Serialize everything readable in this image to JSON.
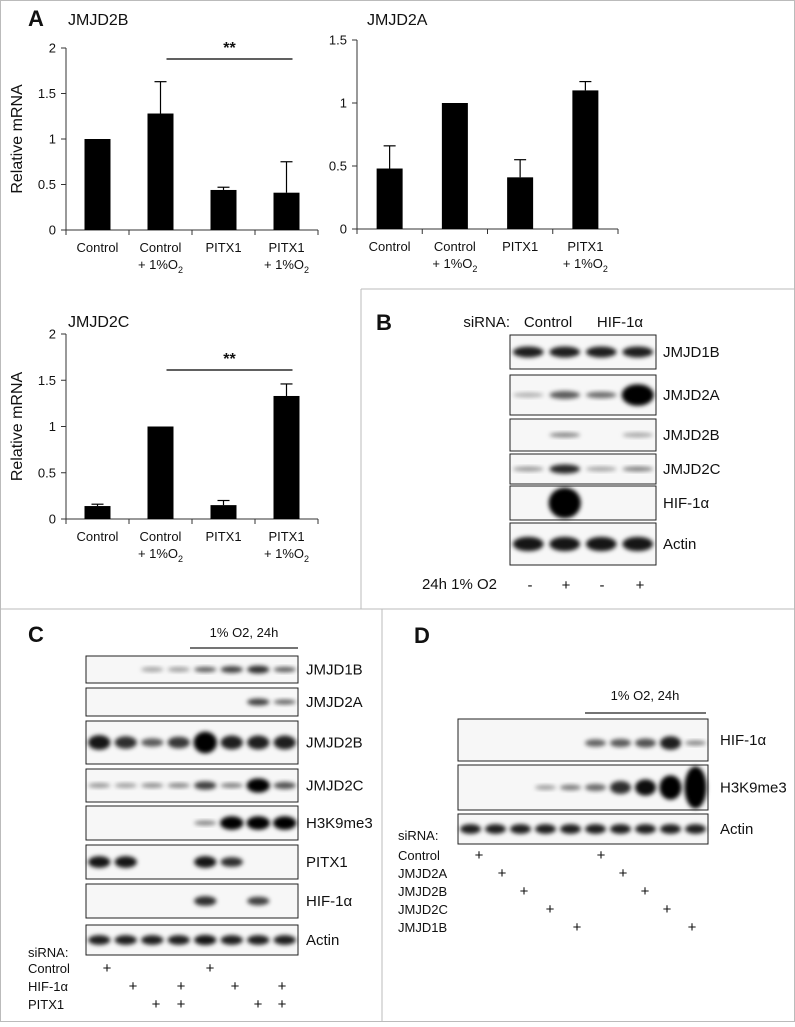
{
  "panel_letters": {
    "a": "A",
    "b": "B",
    "c": "C",
    "d": "D"
  },
  "chart_data": [
    {
      "type": "bar",
      "title": "JMJD2B",
      "ylabel": "Relative mRNA",
      "categories": [
        [
          "Control"
        ],
        [
          "Control",
          "+ 1%O2"
        ],
        [
          "PITX1"
        ],
        [
          "PITX1",
          "+ 1%O2"
        ]
      ],
      "values": [
        1.0,
        1.28,
        0.44,
        0.41
      ],
      "errors": [
        0.0,
        0.35,
        0.03,
        0.34
      ],
      "ylim": [
        0,
        2
      ],
      "yticks": [
        "0",
        "0.5",
        "1",
        "1.5",
        "2"
      ],
      "significance": {
        "label": "**",
        "from": 1,
        "to": 3
      }
    },
    {
      "type": "bar",
      "title": "JMJD2A",
      "ylabel": "",
      "categories": [
        [
          "Control"
        ],
        [
          "Control",
          "+ 1%O2"
        ],
        [
          "PITX1"
        ],
        [
          "PITX1",
          "+ 1%O2"
        ]
      ],
      "values": [
        0.48,
        1.0,
        0.41,
        1.1
      ],
      "errors": [
        0.18,
        0.0,
        0.14,
        0.07
      ],
      "ylim": [
        0,
        1.5
      ],
      "yticks": [
        "0",
        "0.5",
        "1",
        "1.5"
      ]
    },
    {
      "type": "bar",
      "title": "JMJD2C",
      "ylabel": "Relative mRNA",
      "categories": [
        [
          "Control"
        ],
        [
          "Control",
          "+ 1%O2"
        ],
        [
          "PITX1"
        ],
        [
          "PITX1",
          "+ 1%O2"
        ]
      ],
      "values": [
        0.14,
        1.0,
        0.15,
        1.33
      ],
      "errors": [
        0.02,
        0.0,
        0.05,
        0.13
      ],
      "ylim": [
        0,
        2
      ],
      "yticks": [
        "0",
        "0.5",
        "1",
        "1.5",
        "2"
      ],
      "significance": {
        "label": "**",
        "from": 1,
        "to": 3
      }
    }
  ],
  "panel_b": {
    "sirna_label": "siRNA:",
    "groups": [
      "Control",
      "HIF-1α"
    ],
    "bands": [
      "JMJD1B",
      "JMJD2A",
      "JMJD2B",
      "JMJD2C",
      "HIF-1α",
      "Actin"
    ],
    "condition_label": "24h 1% O2",
    "condition_marks": [
      "-",
      "+",
      "-",
      "+"
    ]
  },
  "panel_c": {
    "treatment_label": "1% O2, 24h",
    "bands": [
      "JMJD1B",
      "JMJD2A",
      "JMJD2B",
      "JMJD2C",
      "H3K9me3",
      "PITX1",
      "HIF-1α",
      "Actin"
    ],
    "sirna_label": "siRNA:",
    "rows": [
      {
        "label": "Control",
        "marks": [
          "+",
          "",
          "",
          "",
          "+",
          "",
          "",
          ""
        ]
      },
      {
        "label": "HIF-1α",
        "marks": [
          "",
          "+",
          "",
          "+",
          "",
          "+",
          "",
          "+"
        ]
      },
      {
        "label": "PITX1",
        "marks": [
          "",
          "",
          "+",
          "+",
          "",
          "",
          "+",
          "+"
        ]
      }
    ]
  },
  "panel_d": {
    "treatment_label": "1% O2, 24h",
    "bands": [
      "HIF-1α",
      "H3K9me3",
      "Actin"
    ],
    "sirna_label": "siRNA:",
    "rows": [
      {
        "label": "Control",
        "marks": [
          "+",
          "",
          "",
          "",
          "",
          "+",
          "",
          "",
          "",
          ""
        ]
      },
      {
        "label": "JMJD2A",
        "marks": [
          "",
          "+",
          "",
          "",
          "",
          "",
          "+",
          "",
          "",
          ""
        ]
      },
      {
        "label": "JMJD2B",
        "marks": [
          "",
          "",
          "+",
          "",
          "",
          "",
          "",
          "+",
          "",
          ""
        ]
      },
      {
        "label": "JMJD2C",
        "marks": [
          "",
          "",
          "",
          "+",
          "",
          "",
          "",
          "",
          "+",
          ""
        ]
      },
      {
        "label": "JMJD1B",
        "marks": [
          "",
          "",
          "",
          "",
          "+",
          "",
          "",
          "",
          "",
          "+"
        ]
      }
    ]
  }
}
